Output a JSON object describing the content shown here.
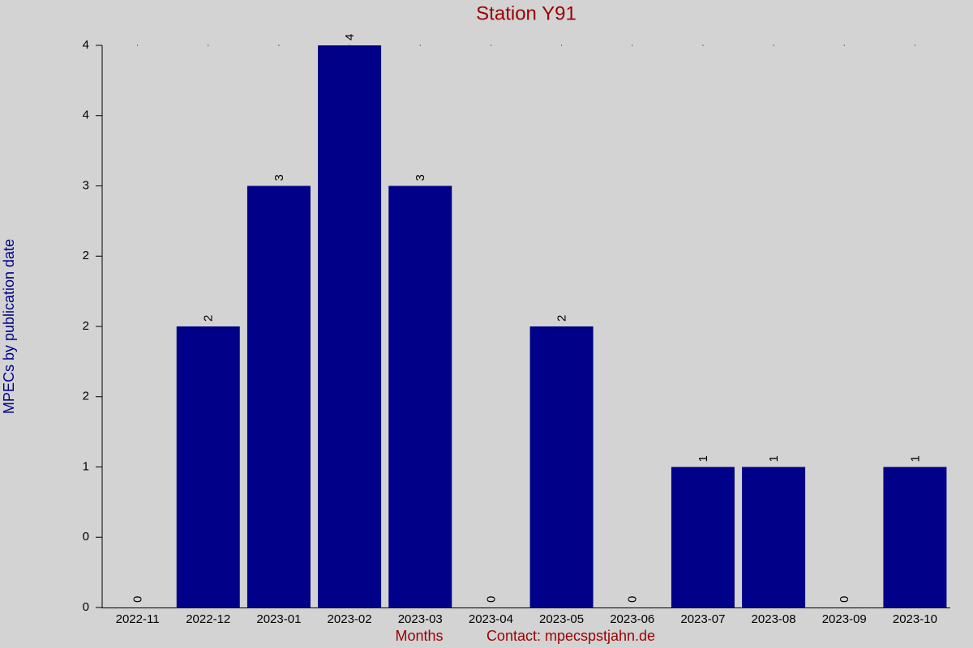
{
  "chart_data": {
    "type": "bar",
    "title": "Station Y91",
    "x_label": "Months",
    "y_label": "MPECs by publication date",
    "footer": "Contact: mpecspstjahn.de",
    "categories": [
      "2022-11",
      "2022-12",
      "2023-01",
      "2023-02",
      "2023-03",
      "2023-04",
      "2023-05",
      "2023-06",
      "2023-07",
      "2023-08",
      "2023-09",
      "2023-10"
    ],
    "values": [
      0,
      2,
      3,
      4,
      3,
      0,
      2,
      0,
      1,
      1,
      0,
      1
    ],
    "color": "#000088",
    "ylim": [
      0,
      4
    ],
    "yticks": [
      0,
      {
        "value": 0.5,
        "label": "0"
      },
      1,
      {
        "value": 1.5,
        "label": "2"
      },
      2,
      {
        "value": 2.5,
        "label": "2"
      },
      3,
      {
        "value": 3.5,
        "label": "4"
      },
      4
    ]
  }
}
